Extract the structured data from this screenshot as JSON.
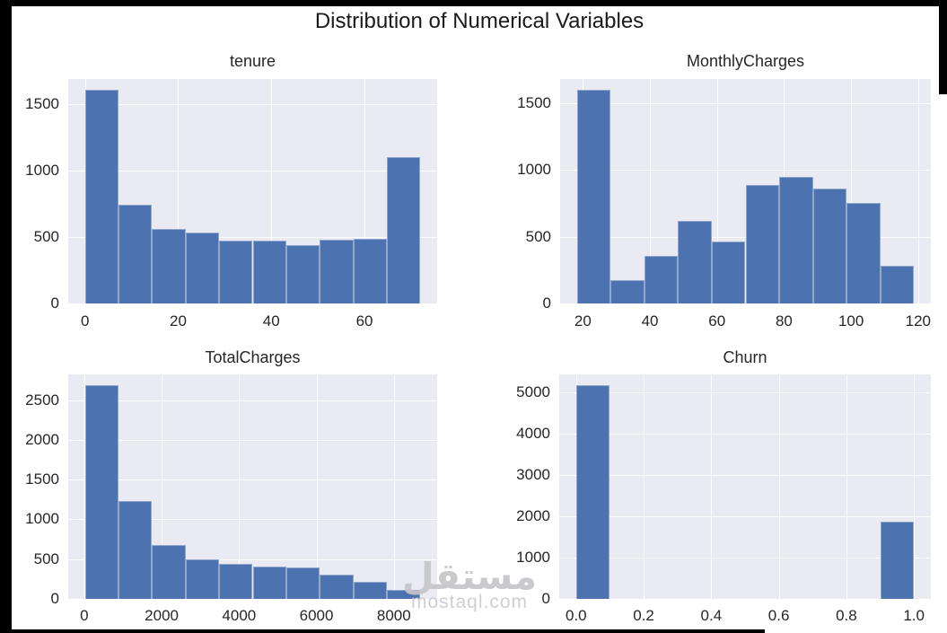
{
  "figure": {
    "title": "Distribution of Numerical Variables",
    "watermark": {
      "arabic": "مستقل",
      "domain": "mostaql.com"
    }
  },
  "colors": {
    "bar": "#4c72b0",
    "plot_bg": "#eaeaf2",
    "grid": "#ffffff",
    "fig_bg": "#ffffff",
    "text": "#262626",
    "frame": "#000000",
    "watermark": "#c6c6ca"
  },
  "chart_data": [
    {
      "type": "bar",
      "title": "tenure",
      "bins": {
        "start": 0,
        "width": 7.2
      },
      "values": [
        1610,
        745,
        560,
        535,
        470,
        470,
        440,
        480,
        485,
        1100
      ],
      "xlim": [
        -3.6,
        75.6
      ],
      "ylim": [
        0,
        1690
      ],
      "xticks": [
        {
          "v": 0,
          "label": "0"
        },
        {
          "v": 20,
          "label": "20"
        },
        {
          "v": 40,
          "label": "40"
        },
        {
          "v": 60,
          "label": "60"
        }
      ],
      "yticks": [
        {
          "v": 0,
          "label": "0"
        },
        {
          "v": 500,
          "label": "500"
        },
        {
          "v": 1000,
          "label": "1000"
        },
        {
          "v": 1500,
          "label": "1500"
        }
      ],
      "grid": true,
      "legend": null
    },
    {
      "type": "bar",
      "title": "MonthlyCharges",
      "bins": {
        "start": 18.25,
        "width": 10.05
      },
      "values": [
        1600,
        175,
        355,
        620,
        465,
        890,
        950,
        860,
        755,
        280
      ],
      "xlim": [
        13.2,
        123.8
      ],
      "ylim": [
        0,
        1680
      ],
      "xticks": [
        {
          "v": 20,
          "label": "20"
        },
        {
          "v": 40,
          "label": "40"
        },
        {
          "v": 60,
          "label": "60"
        },
        {
          "v": 80,
          "label": "80"
        },
        {
          "v": 100,
          "label": "100"
        },
        {
          "v": 120,
          "label": "120"
        }
      ],
      "yticks": [
        {
          "v": 0,
          "label": "0"
        },
        {
          "v": 500,
          "label": "500"
        },
        {
          "v": 1000,
          "label": "1000"
        },
        {
          "v": 1500,
          "label": "1500"
        }
      ],
      "grid": true,
      "legend": null
    },
    {
      "type": "bar",
      "title": "TotalCharges",
      "bins": {
        "start": 18.8,
        "width": 866.6
      },
      "values": [
        2690,
        1235,
        680,
        500,
        445,
        405,
        390,
        310,
        210,
        115
      ],
      "xlim": [
        -414.5,
        9118.1
      ],
      "ylim": [
        0,
        2824
      ],
      "xticks": [
        {
          "v": 0,
          "label": "0"
        },
        {
          "v": 2000,
          "label": "2000"
        },
        {
          "v": 4000,
          "label": "4000"
        },
        {
          "v": 6000,
          "label": "6000"
        },
        {
          "v": 8000,
          "label": "8000"
        }
      ],
      "yticks": [
        {
          "v": 0,
          "label": "0"
        },
        {
          "v": 500,
          "label": "500"
        },
        {
          "v": 1000,
          "label": "1000"
        },
        {
          "v": 1500,
          "label": "1500"
        },
        {
          "v": 2000,
          "label": "2000"
        },
        {
          "v": 2500,
          "label": "2500"
        }
      ],
      "grid": true,
      "legend": null
    },
    {
      "type": "bar",
      "title": "Churn",
      "bins": {
        "start": 0,
        "width": 0.1
      },
      "values": [
        5174,
        0,
        0,
        0,
        0,
        0,
        0,
        0,
        0,
        1869
      ],
      "xlim": [
        -0.05,
        1.05
      ],
      "ylim": [
        0,
        5433
      ],
      "xticks": [
        {
          "v": 0.0,
          "label": "0.0"
        },
        {
          "v": 0.2,
          "label": "0.2"
        },
        {
          "v": 0.4,
          "label": "0.4"
        },
        {
          "v": 0.6,
          "label": "0.6"
        },
        {
          "v": 0.8,
          "label": "0.8"
        },
        {
          "v": 1.0,
          "label": "1.0"
        }
      ],
      "yticks": [
        {
          "v": 0,
          "label": "0"
        },
        {
          "v": 1000,
          "label": "1000"
        },
        {
          "v": 2000,
          "label": "2000"
        },
        {
          "v": 3000,
          "label": "3000"
        },
        {
          "v": 4000,
          "label": "4000"
        },
        {
          "v": 5000,
          "label": "5000"
        }
      ],
      "grid": true,
      "legend": null
    }
  ]
}
